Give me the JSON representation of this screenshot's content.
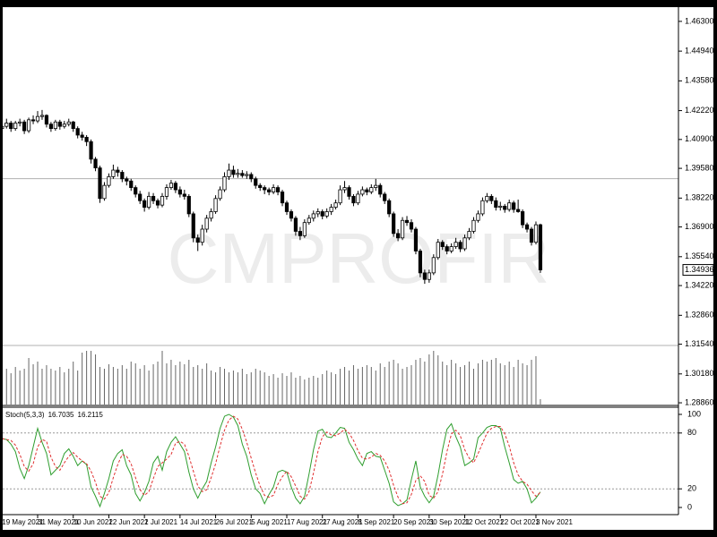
{
  "watermark": "CMPROFIR",
  "chart_data": [
    {
      "type": "candlestick",
      "ohlc": [
        [
          1.414,
          1.417,
          1.412,
          1.415
        ],
        [
          1.415,
          1.4185,
          1.414,
          1.4165
        ],
        [
          1.4165,
          1.4175,
          1.4125,
          1.414
        ],
        [
          1.414,
          1.4175,
          1.413,
          1.4165
        ],
        [
          1.4165,
          1.4185,
          1.415,
          1.417
        ],
        [
          1.417,
          1.418,
          1.4115,
          1.413
        ],
        [
          1.413,
          1.419,
          1.412,
          1.418
        ],
        [
          1.418,
          1.42,
          1.416,
          1.4175
        ],
        [
          1.4175,
          1.422,
          1.4165,
          1.4195
        ],
        [
          1.4195,
          1.4225,
          1.418,
          1.42
        ],
        [
          1.42,
          1.4205,
          1.4145,
          1.416
        ],
        [
          1.416,
          1.417,
          1.4125,
          1.414
        ],
        [
          1.414,
          1.418,
          1.413,
          1.417
        ],
        [
          1.417,
          1.418,
          1.4135,
          1.415
        ],
        [
          1.415,
          1.4175,
          1.414,
          1.416
        ],
        [
          1.416,
          1.4185,
          1.415,
          1.417
        ],
        [
          1.417,
          1.4175,
          1.4125,
          1.414
        ],
        [
          1.414,
          1.415,
          1.4095,
          1.411
        ],
        [
          1.411,
          1.4125,
          1.4085,
          1.41
        ],
        [
          1.41,
          1.411,
          1.406,
          1.408
        ],
        [
          1.408,
          1.409,
          1.398,
          1.4
        ],
        [
          1.4,
          1.401,
          1.3945,
          1.396
        ],
        [
          1.396,
          1.397,
          1.38,
          1.382
        ],
        [
          1.382,
          1.3895,
          1.381,
          1.388
        ],
        [
          1.388,
          1.3935,
          1.387,
          1.392
        ],
        [
          1.392,
          1.3975,
          1.391,
          1.395
        ],
        [
          1.395,
          1.3965,
          1.392,
          1.394
        ],
        [
          1.394,
          1.395,
          1.3895,
          1.391
        ],
        [
          1.391,
          1.392,
          1.388,
          1.39
        ],
        [
          1.39,
          1.391,
          1.3855,
          1.387
        ],
        [
          1.387,
          1.388,
          1.3825,
          1.384
        ],
        [
          1.384,
          1.3855,
          1.3795,
          1.381
        ],
        [
          1.381,
          1.382,
          1.376,
          1.378
        ],
        [
          1.378,
          1.385,
          1.377,
          1.383
        ],
        [
          1.383,
          1.3845,
          1.3795,
          1.381
        ],
        [
          1.381,
          1.382,
          1.3775,
          1.379
        ],
        [
          1.379,
          1.3845,
          1.378,
          1.383
        ],
        [
          1.383,
          1.3885,
          1.3815,
          1.387
        ],
        [
          1.387,
          1.3905,
          1.386,
          1.389
        ],
        [
          1.389,
          1.39,
          1.3845,
          1.386
        ],
        [
          1.386,
          1.3875,
          1.3825,
          1.384
        ],
        [
          1.384,
          1.386,
          1.3815,
          1.383
        ],
        [
          1.383,
          1.384,
          1.3735,
          1.375
        ],
        [
          1.375,
          1.376,
          1.362,
          1.364
        ],
        [
          1.364,
          1.3655,
          1.358,
          1.362
        ],
        [
          1.362,
          1.37,
          1.3605,
          1.368
        ],
        [
          1.368,
          1.3745,
          1.3665,
          1.373
        ],
        [
          1.373,
          1.3775,
          1.3715,
          1.376
        ],
        [
          1.376,
          1.3835,
          1.375,
          1.382
        ],
        [
          1.382,
          1.3875,
          1.381,
          1.386
        ],
        [
          1.386,
          1.394,
          1.385,
          1.392
        ],
        [
          1.392,
          1.398,
          1.3905,
          1.395
        ],
        [
          1.395,
          1.397,
          1.3915,
          1.393
        ],
        [
          1.393,
          1.3955,
          1.3915,
          1.3935
        ],
        [
          1.3935,
          1.395,
          1.3915,
          1.3925
        ],
        [
          1.3925,
          1.3945,
          1.391,
          1.393
        ],
        [
          1.393,
          1.394,
          1.3895,
          1.391
        ],
        [
          1.391,
          1.392,
          1.3865,
          1.388
        ],
        [
          1.388,
          1.389,
          1.3855,
          1.387
        ],
        [
          1.387,
          1.388,
          1.384,
          1.386
        ],
        [
          1.386,
          1.387,
          1.3835,
          1.385
        ],
        [
          1.385,
          1.3885,
          1.384,
          1.387
        ],
        [
          1.387,
          1.388,
          1.3835,
          1.385
        ],
        [
          1.385,
          1.386,
          1.3785,
          1.38
        ],
        [
          1.38,
          1.381,
          1.3745,
          1.376
        ],
        [
          1.376,
          1.377,
          1.3715,
          1.373
        ],
        [
          1.373,
          1.374,
          1.365,
          1.367
        ],
        [
          1.367,
          1.369,
          1.363,
          1.365
        ],
        [
          1.365,
          1.3725,
          1.364,
          1.371
        ],
        [
          1.371,
          1.3745,
          1.37,
          1.373
        ],
        [
          1.373,
          1.3765,
          1.3715,
          1.375
        ],
        [
          1.375,
          1.3775,
          1.3735,
          1.376
        ],
        [
          1.376,
          1.377,
          1.3725,
          1.374
        ],
        [
          1.374,
          1.3775,
          1.373,
          1.376
        ],
        [
          1.376,
          1.3795,
          1.3745,
          1.378
        ],
        [
          1.378,
          1.3815,
          1.377,
          1.38
        ],
        [
          1.38,
          1.388,
          1.379,
          1.386
        ],
        [
          1.386,
          1.39,
          1.3845,
          1.387
        ],
        [
          1.387,
          1.388,
          1.3815,
          1.383
        ],
        [
          1.383,
          1.384,
          1.3785,
          1.38
        ],
        [
          1.38,
          1.3855,
          1.379,
          1.384
        ],
        [
          1.384,
          1.3875,
          1.383,
          1.386
        ],
        [
          1.386,
          1.387,
          1.3835,
          1.385
        ],
        [
          1.385,
          1.3885,
          1.384,
          1.387
        ],
        [
          1.387,
          1.391,
          1.3855,
          1.388
        ],
        [
          1.388,
          1.389,
          1.3825,
          1.384
        ],
        [
          1.384,
          1.385,
          1.3795,
          1.381
        ],
        [
          1.381,
          1.382,
          1.3735,
          1.375
        ],
        [
          1.375,
          1.376,
          1.3645,
          1.366
        ],
        [
          1.366,
          1.368,
          1.3625,
          1.364
        ],
        [
          1.364,
          1.3735,
          1.363,
          1.372
        ],
        [
          1.372,
          1.374,
          1.3695,
          1.371
        ],
        [
          1.371,
          1.3725,
          1.3665,
          1.368
        ],
        [
          1.368,
          1.369,
          1.3565,
          1.358
        ],
        [
          1.358,
          1.359,
          1.346,
          1.348
        ],
        [
          1.348,
          1.3495,
          1.343,
          1.345
        ],
        [
          1.345,
          1.3495,
          1.3435,
          1.348
        ],
        [
          1.348,
          1.3565,
          1.347,
          1.355
        ],
        [
          1.355,
          1.3635,
          1.354,
          1.362
        ],
        [
          1.362,
          1.363,
          1.3585,
          1.36
        ],
        [
          1.36,
          1.361,
          1.3565,
          1.358
        ],
        [
          1.358,
          1.3615,
          1.357,
          1.36
        ],
        [
          1.36,
          1.364,
          1.359,
          1.362
        ],
        [
          1.362,
          1.363,
          1.3575,
          1.359
        ],
        [
          1.359,
          1.3655,
          1.358,
          1.364
        ],
        [
          1.364,
          1.3685,
          1.363,
          1.367
        ],
        [
          1.367,
          1.3735,
          1.366,
          1.372
        ],
        [
          1.372,
          1.3765,
          1.371,
          1.375
        ],
        [
          1.375,
          1.3825,
          1.374,
          1.381
        ],
        [
          1.381,
          1.3845,
          1.38,
          1.383
        ],
        [
          1.383,
          1.384,
          1.3795,
          1.381
        ],
        [
          1.381,
          1.3825,
          1.3765,
          1.378
        ],
        [
          1.378,
          1.3805,
          1.3765,
          1.3785
        ],
        [
          1.3785,
          1.3795,
          1.3755,
          1.377
        ],
        [
          1.377,
          1.3815,
          1.376,
          1.38
        ],
        [
          1.38,
          1.381,
          1.3755,
          1.377
        ],
        [
          1.377,
          1.3815,
          1.3755,
          1.376
        ],
        [
          1.376,
          1.377,
          1.3685,
          1.37
        ],
        [
          1.37,
          1.371,
          1.3665,
          1.368
        ],
        [
          1.368,
          1.369,
          1.3605,
          1.362
        ],
        [
          1.362,
          1.3715,
          1.361,
          1.37
        ],
        [
          1.37,
          1.3705,
          1.348,
          1.34936
        ]
      ],
      "volumes": [
        38,
        40,
        35,
        42,
        38,
        40,
        52,
        45,
        48,
        40,
        44,
        40,
        38,
        42,
        36,
        40,
        48,
        38,
        58,
        60,
        60,
        56,
        42,
        40,
        45,
        42,
        40,
        44,
        40,
        48,
        46,
        40,
        44,
        38,
        45,
        48,
        60,
        46,
        50,
        44,
        48,
        45,
        50,
        42,
        44,
        40,
        46,
        38,
        36,
        42,
        40,
        36,
        38,
        36,
        40,
        34,
        36,
        40,
        38,
        36,
        32,
        34,
        30,
        35,
        32,
        36,
        30,
        32,
        28,
        30,
        32,
        30,
        34,
        38,
        36,
        34,
        40,
        42,
        38,
        44,
        40,
        42,
        44,
        42,
        38,
        46,
        42,
        48,
        50,
        46,
        40,
        42,
        44,
        50,
        52,
        48,
        56,
        60,
        55,
        48,
        44,
        50,
        46,
        42,
        44,
        48,
        40,
        46,
        50,
        48,
        50,
        52,
        46,
        44,
        48,
        42,
        50,
        46,
        44,
        50,
        54,
        6
      ],
      "ylim": [
        1.2878,
        1.4695
      ],
      "yticks": [
        {
          "value": 1.463,
          "label": "1.46300"
        },
        {
          "value": 1.4494,
          "label": "1.44940"
        },
        {
          "value": 1.4358,
          "label": "1.43580"
        },
        {
          "value": 1.4222,
          "label": "1.42220"
        },
        {
          "value": 1.409,
          "label": "1.40900"
        },
        {
          "value": 1.3958,
          "label": "1.39580"
        },
        {
          "value": 1.3822,
          "label": "1.38220"
        },
        {
          "value": 1.369,
          "label": "1.36900"
        },
        {
          "value": 1.3554,
          "label": "1.35540"
        },
        {
          "value": 1.3422,
          "label": "1.34220"
        },
        {
          "value": 1.3286,
          "label": "1.32860"
        },
        {
          "value": 1.3154,
          "label": "1.31540"
        },
        {
          "value": 1.3018,
          "label": "1.30180"
        },
        {
          "value": 1.2886,
          "label": "1.28860"
        }
      ],
      "hlines": [
        1.3911,
        1.3148
      ],
      "up_color": "#ffffff",
      "down_color": "#000000",
      "volume_color": "#666666"
    },
    {
      "type": "line",
      "title": "Stoch(5,3,3)",
      "categories": [
        "19 May 2021",
        null,
        null,
        null,
        null,
        null,
        null,
        null,
        "31 May 2021",
        null,
        null,
        null,
        null,
        null,
        null,
        null,
        "10 Jun 2021",
        null,
        null,
        null,
        null,
        null,
        null,
        null,
        "22 Jun 2021",
        null,
        null,
        null,
        null,
        null,
        null,
        null,
        "2 Jul 2021",
        null,
        null,
        null,
        null,
        null,
        null,
        null,
        "14 Jul 2021",
        null,
        null,
        null,
        null,
        null,
        null,
        null,
        "26 Jul 2021",
        null,
        null,
        null,
        null,
        null,
        null,
        null,
        "5 Aug 2021",
        null,
        null,
        null,
        null,
        null,
        null,
        null,
        "17 Aug 2021",
        null,
        null,
        null,
        null,
        null,
        null,
        null,
        "27 Aug 2021",
        null,
        null,
        null,
        null,
        null,
        null,
        null,
        "8 Sep 2021",
        null,
        null,
        null,
        null,
        null,
        null,
        null,
        "20 Sep 2021",
        null,
        null,
        null,
        null,
        null,
        null,
        null,
        "30 Sep 2021",
        null,
        null,
        null,
        null,
        null,
        null,
        null,
        "12 Oct 2021",
        null,
        null,
        null,
        null,
        null,
        null,
        null,
        "22 Oct 2021",
        null,
        null,
        null,
        null,
        null,
        null,
        null,
        "3 Nov 2021",
        null
      ],
      "series": [
        {
          "color": "#2f9e2f",
          "values": [
            74,
            73,
            68,
            60,
            42,
            31,
            45,
            65,
            85,
            70,
            58,
            35,
            40,
            45,
            58,
            63,
            55,
            45,
            50,
            46,
            22,
            12,
            1,
            15,
            31,
            50,
            58,
            62,
            45,
            35,
            15,
            7,
            16,
            28,
            48,
            55,
            40,
            60,
            70,
            76,
            68,
            60,
            38,
            20,
            10,
            20,
            28,
            48,
            65,
            85,
            98,
            100,
            97,
            88,
            68,
            55,
            35,
            20,
            15,
            4,
            14,
            22,
            38,
            40,
            38,
            22,
            10,
            4,
            12,
            36,
            62,
            82,
            84,
            76,
            75,
            80,
            86,
            85,
            70,
            62,
            52,
            45,
            58,
            60,
            55,
            54,
            40,
            26,
            6,
            2,
            4,
            8,
            30,
            50,
            22,
            12,
            5,
            12,
            35,
            62,
            84,
            90,
            76,
            65,
            45,
            48,
            52,
            75,
            80,
            86,
            88,
            88,
            85,
            65,
            48,
            30,
            26,
            28,
            20,
            5,
            10,
            16.7035
          ]
        },
        {
          "color": "#e03030",
          "dashed": true,
          "values": [
            74,
            73,
            72,
            67,
            57,
            44,
            39,
            47,
            65,
            73,
            71,
            54,
            44,
            40,
            48,
            55,
            59,
            54,
            50,
            47,
            39,
            27,
            12,
            9,
            16,
            32,
            46,
            57,
            55,
            47,
            32,
            19,
            13,
            17,
            31,
            44,
            48,
            52,
            57,
            69,
            71,
            68,
            55,
            39,
            23,
            17,
            19,
            32,
            47,
            66,
            83,
            94,
            98,
            95,
            84,
            70,
            53,
            37,
            23,
            13,
            11,
            13,
            25,
            33,
            39,
            33,
            23,
            12,
            9,
            17,
            37,
            60,
            76,
            81,
            78,
            77,
            80,
            84,
            80,
            72,
            61,
            53,
            52,
            54,
            58,
            56,
            50,
            40,
            24,
            11,
            4,
            5,
            14,
            29,
            34,
            28,
            13,
            10,
            17,
            36,
            60,
            79,
            83,
            77,
            62,
            53,
            48,
            58,
            69,
            80,
            85,
            87,
            87,
            79,
            66,
            48,
            35,
            28,
            25,
            18,
            12,
            16.2115
          ]
        }
      ],
      "ylim": [
        -7.7,
        107.7
      ],
      "yticks": [
        0,
        20,
        80,
        100
      ],
      "levels": [
        20,
        80
      ]
    }
  ]
}
